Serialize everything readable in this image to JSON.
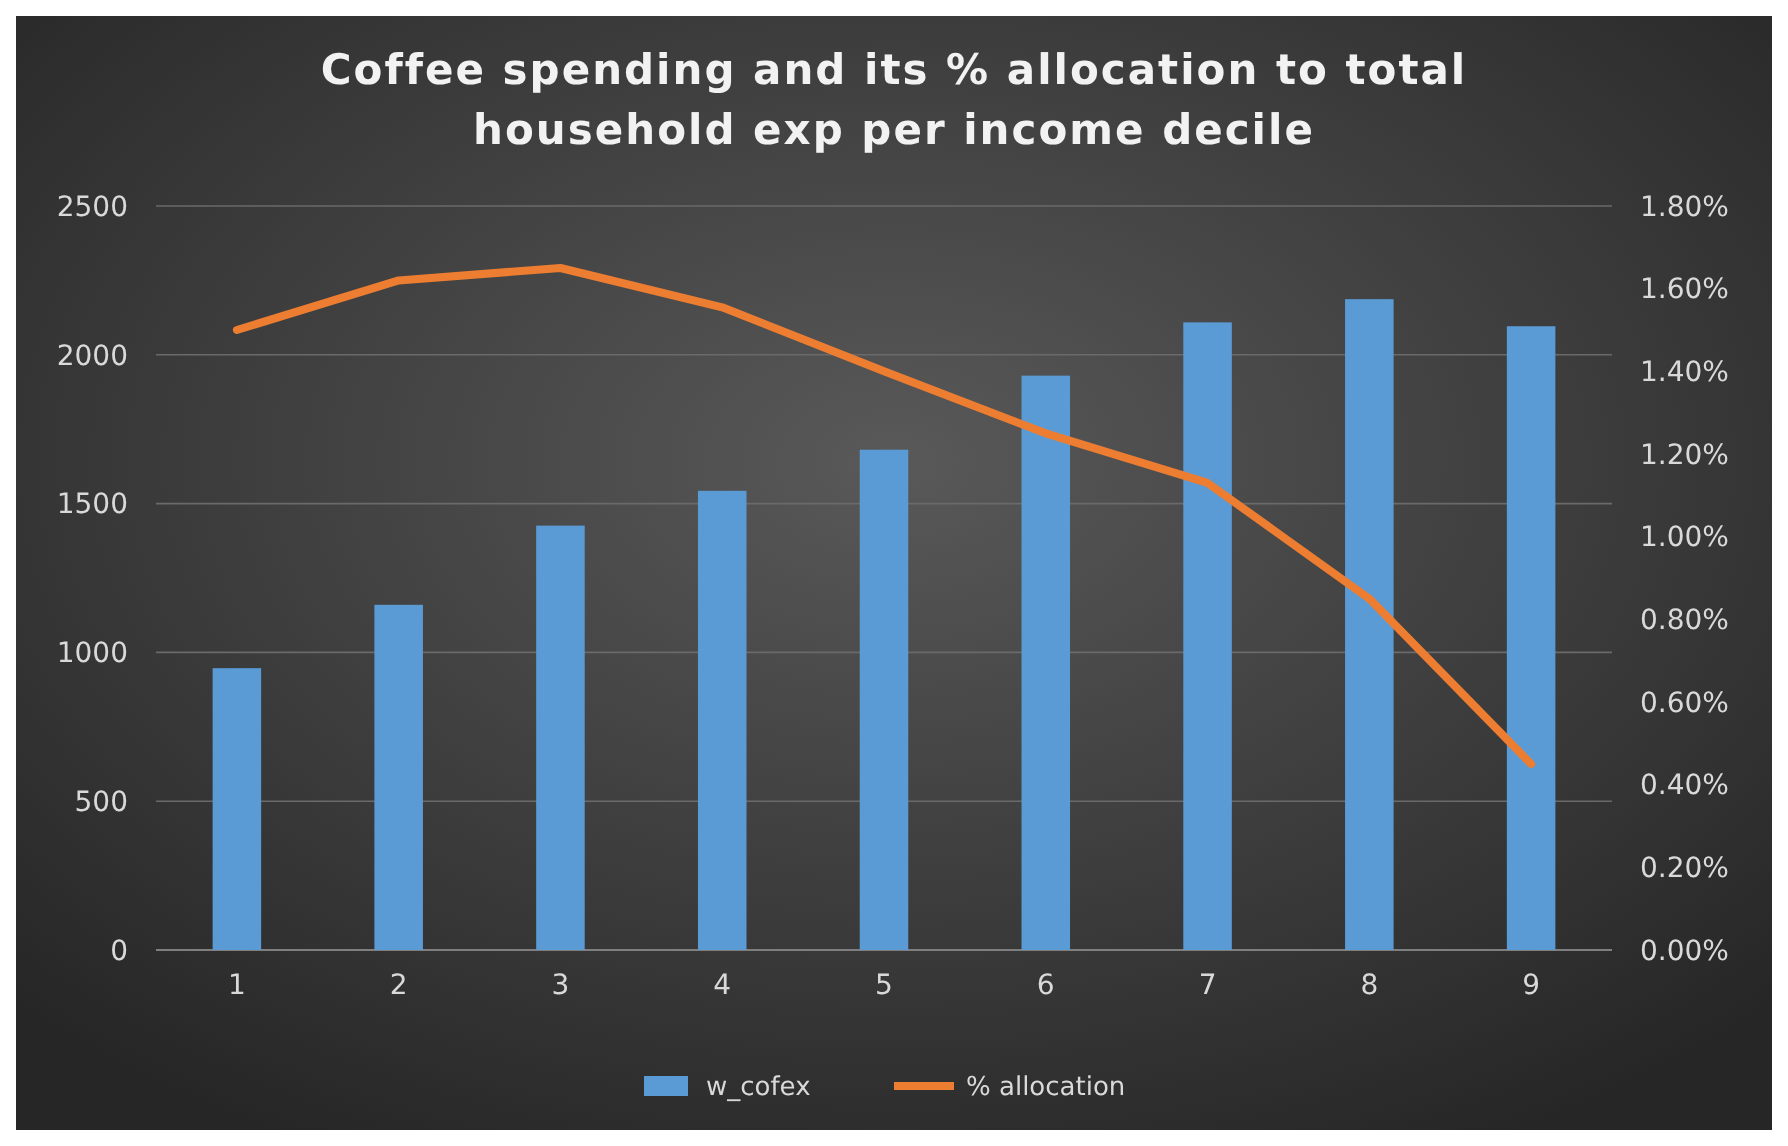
{
  "chart_data": {
    "type": "bar",
    "title": "Coffee spending and its % allocation to total household exp per income decile",
    "categories": [
      "1",
      "2",
      "3",
      "4",
      "5",
      "6",
      "7",
      "8",
      "9"
    ],
    "series": [
      {
        "name": "w_cofex",
        "color": "#5b9bd5",
        "values": [
          947,
          1160,
          1426,
          1543,
          1681,
          1930,
          2109,
          2187,
          2096
        ]
      },
      {
        "name": "% allocation",
        "type": "line",
        "axis": "y2",
        "color": "#ed7d31",
        "values": [
          1.5,
          1.62,
          1.65,
          1.555,
          1.4,
          1.25,
          1.13,
          0.85,
          0.45
        ]
      }
    ],
    "ylim": [
      0,
      2500
    ],
    "yticks": [
      0,
      500,
      1000,
      1500,
      2000,
      2500
    ],
    "y2lim": [
      0,
      1.8
    ],
    "y2ticks": [
      {
        "value": 0,
        "label": "0.00%"
      },
      {
        "value": 0.2,
        "label": "0.20%"
      },
      {
        "value": 0.4,
        "label": "0.40%"
      },
      {
        "value": 0.6,
        "label": "0.60%"
      },
      {
        "value": 0.8,
        "label": "0.80%"
      },
      {
        "value": 1.0,
        "label": "1.00%"
      },
      {
        "value": 1.2,
        "label": "1.20%"
      },
      {
        "value": 1.4,
        "label": "1.40%"
      },
      {
        "value": 1.6,
        "label": "1.60%"
      },
      {
        "value": 1.8,
        "label": "1.80%"
      }
    ],
    "grid": "y",
    "legend": "bottom"
  }
}
